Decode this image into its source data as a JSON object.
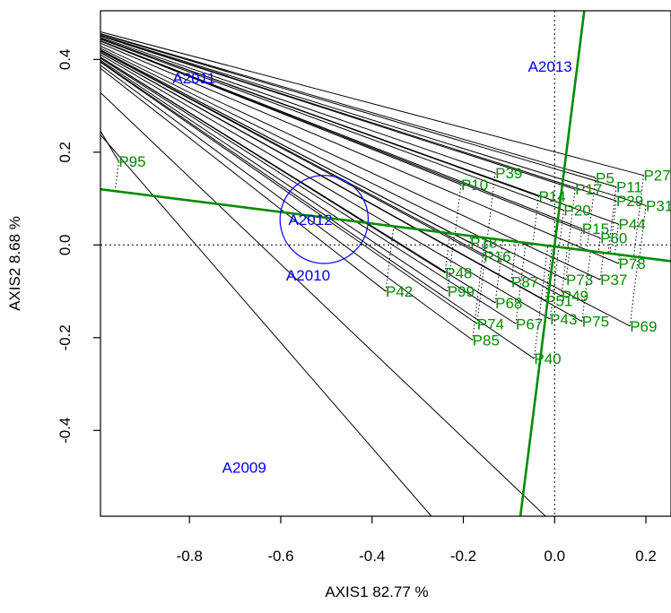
{
  "chart_data": {
    "type": "scatter",
    "title": "",
    "xlabel": "AXIS1 82.77 %",
    "ylabel": "AXIS2 8.68 %",
    "xlim": [
      -0.995,
      0.255
    ],
    "ylim": [
      -0.585,
      0.505
    ],
    "x_ticks": [
      -0.8,
      -0.6,
      -0.4,
      -0.2,
      0.0,
      0.2
    ],
    "x_tick_labels": [
      "-0.8",
      "-0.6",
      "-0.4",
      "-0.2",
      "0.0",
      "0.2"
    ],
    "y_ticks": [
      -0.4,
      -0.2,
      0.0,
      0.2,
      0.4
    ],
    "y_tick_labels": [
      "-0.4",
      "-0.2",
      "0.0",
      "0.2",
      "0.4"
    ],
    "colors": {
      "years": "#0000ff",
      "points": "#008b00",
      "axes_lines": "#008b00",
      "segments": "#000000"
    },
    "years": [
      {
        "label": "A2009",
        "x": -0.68,
        "y": -0.48
      },
      {
        "label": "A2010",
        "x": -0.54,
        "y": -0.065
      },
      {
        "label": "A2011",
        "x": -0.79,
        "y": 0.36
      },
      {
        "label": "A2012",
        "x": -0.535,
        "y": 0.055
      },
      {
        "label": "A2013",
        "x": -0.01,
        "y": 0.385
      }
    ],
    "circle": {
      "x": -0.505,
      "y": 0.055,
      "r": 0.095
    },
    "fitted_axes": [
      {
        "x1": -0.995,
        "y1": 0.12,
        "x2": 0.255,
        "y2": -0.035
      },
      {
        "x1": -0.075,
        "y1": -0.585,
        "x2": 0.065,
        "y2": 0.505
      }
    ],
    "points": [
      {
        "label": "P95",
        "x": -0.955,
        "y": 0.18
      },
      {
        "label": "P42",
        "x": -0.37,
        "y": -0.1
      },
      {
        "label": "P10",
        "x": -0.205,
        "y": 0.13
      },
      {
        "label": "P39",
        "x": -0.13,
        "y": 0.155
      },
      {
        "label": "P5",
        "x": 0.09,
        "y": 0.145
      },
      {
        "label": "P27",
        "x": 0.195,
        "y": 0.15
      },
      {
        "label": "P11",
        "x": 0.135,
        "y": 0.125
      },
      {
        "label": "P17",
        "x": 0.045,
        "y": 0.12
      },
      {
        "label": "P14",
        "x": -0.035,
        "y": 0.105
      },
      {
        "label": "P29",
        "x": 0.135,
        "y": 0.095
      },
      {
        "label": "P31",
        "x": 0.2,
        "y": 0.085
      },
      {
        "label": "P20",
        "x": 0.02,
        "y": 0.075
      },
      {
        "label": "P44",
        "x": 0.14,
        "y": 0.045
      },
      {
        "label": "P60",
        "x": 0.1,
        "y": 0.015
      },
      {
        "label": "P15",
        "x": 0.06,
        "y": 0.035
      },
      {
        "label": "P18",
        "x": -0.185,
        "y": 0.005
      },
      {
        "label": "P16",
        "x": -0.155,
        "y": -0.025
      },
      {
        "label": "P48",
        "x": -0.24,
        "y": -0.06
      },
      {
        "label": "P99",
        "x": -0.235,
        "y": -0.1
      },
      {
        "label": "P87",
        "x": -0.095,
        "y": -0.08
      },
      {
        "label": "P68",
        "x": -0.13,
        "y": -0.125
      },
      {
        "label": "P78",
        "x": 0.14,
        "y": -0.04
      },
      {
        "label": "P73",
        "x": 0.025,
        "y": -0.075
      },
      {
        "label": "P37",
        "x": 0.1,
        "y": -0.075
      },
      {
        "label": "P49",
        "x": 0.015,
        "y": -0.11
      },
      {
        "label": "P51",
        "x": -0.02,
        "y": -0.12
      },
      {
        "label": "P43",
        "x": -0.01,
        "y": -0.16
      },
      {
        "label": "P75",
        "x": 0.06,
        "y": -0.165
      },
      {
        "label": "P69",
        "x": 0.165,
        "y": -0.175
      },
      {
        "label": "P74",
        "x": -0.17,
        "y": -0.17
      },
      {
        "label": "P67",
        "x": -0.085,
        "y": -0.17
      },
      {
        "label": "P85",
        "x": -0.18,
        "y": -0.205
      },
      {
        "label": "P40",
        "x": -0.045,
        "y": -0.245
      }
    ]
  }
}
